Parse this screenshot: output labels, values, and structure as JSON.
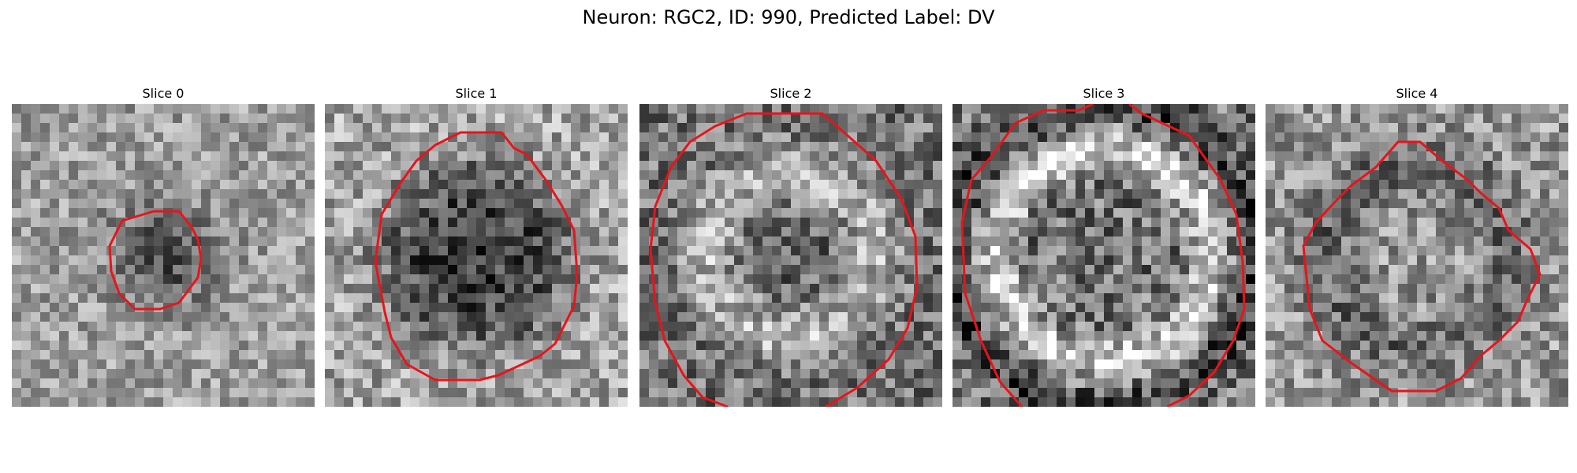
{
  "figure": {
    "title": "Neuron: RGC2, ID: 990, Predicted Label: DV",
    "contour_color": "#e8141a",
    "slices": [
      {
        "label": "Slice 0",
        "seed": 11,
        "contrast": 0.55
      },
      {
        "label": "Slice 1",
        "seed": 23,
        "contrast": 0.65
      },
      {
        "label": "Slice 2",
        "seed": 37,
        "contrast": 0.7
      },
      {
        "label": "Slice 3",
        "seed": 41,
        "contrast": 0.8
      },
      {
        "label": "Slice 4",
        "seed": 53,
        "contrast": 0.65
      }
    ]
  }
}
